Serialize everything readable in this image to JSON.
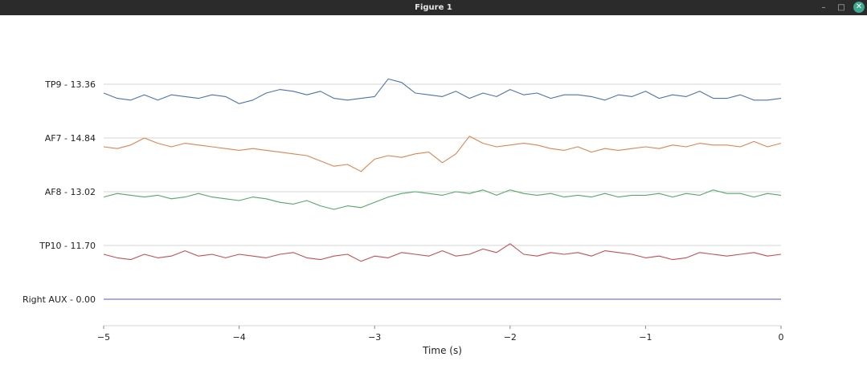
{
  "window": {
    "title": "Figure 1",
    "minimize_glyph": "–",
    "maximize_glyph": "□",
    "close_glyph": "✕",
    "close_color": "#3fa88f"
  },
  "chart_data": {
    "type": "line",
    "title": "",
    "xlabel": "Time (s)",
    "ylabel": "",
    "xlim": [
      -5,
      0
    ],
    "xticks": [
      -5,
      -4,
      -3,
      -2,
      -1,
      0
    ],
    "xtick_labels": [
      "−5",
      "−4",
      "−3",
      "−2",
      "−1",
      "0"
    ],
    "grid": "horizontal at each channel baseline",
    "channels": [
      "TP9 - 13.36",
      "AF7 - 14.84",
      "AF8 - 13.02",
      "TP10 - 11.70",
      "Right AUX - 0.00"
    ],
    "series": [
      {
        "name": "TP9 - 13.36",
        "color": "#4c72b0",
        "x": [
          -5.0,
          -4.9,
          -4.8,
          -4.7,
          -4.6,
          -4.5,
          -4.4,
          -4.3,
          -4.2,
          -4.1,
          -4.0,
          -3.9,
          -3.8,
          -3.7,
          -3.6,
          -3.5,
          -3.4,
          -3.3,
          -3.2,
          -3.1,
          -3.0,
          -2.9,
          -2.8,
          -2.7,
          -2.6,
          -2.5,
          -2.4,
          -2.3,
          -2.2,
          -2.1,
          -2.0,
          -1.9,
          -1.8,
          -1.7,
          -1.6,
          -1.5,
          -1.4,
          -1.3,
          -1.2,
          -1.1,
          -1.0,
          -0.9,
          -0.8,
          -0.7,
          -0.6,
          -0.5,
          -0.4,
          -0.3,
          -0.2,
          -0.1,
          0.0
        ],
        "y": [
          -0.5,
          -0.8,
          -0.9,
          -0.6,
          -0.9,
          -0.6,
          -0.7,
          -0.8,
          -0.6,
          -0.7,
          -1.1,
          -0.9,
          -0.5,
          -0.3,
          -0.4,
          -0.6,
          -0.4,
          -0.8,
          -0.9,
          -0.8,
          -0.7,
          0.3,
          0.1,
          -0.5,
          -0.6,
          -0.7,
          -0.4,
          -0.8,
          -0.5,
          -0.7,
          -0.3,
          -0.6,
          -0.5,
          -0.8,
          -0.6,
          -0.6,
          -0.7,
          -0.9,
          -0.6,
          -0.7,
          -0.4,
          -0.8,
          -0.6,
          -0.7,
          -0.4,
          -0.8,
          -0.8,
          -0.6,
          -0.9,
          -0.9,
          -0.8
        ]
      },
      {
        "name": "AF7 - 14.84",
        "color": "#dd8452",
        "x": [
          -5.0,
          -4.9,
          -4.8,
          -4.7,
          -4.6,
          -4.5,
          -4.4,
          -4.3,
          -4.2,
          -4.1,
          -4.0,
          -3.9,
          -3.8,
          -3.7,
          -3.6,
          -3.5,
          -3.4,
          -3.3,
          -3.2,
          -3.1,
          -3.0,
          -2.9,
          -2.8,
          -2.7,
          -2.6,
          -2.5,
          -2.4,
          -2.3,
          -2.2,
          -2.1,
          -2.0,
          -1.9,
          -1.8,
          -1.7,
          -1.6,
          -1.5,
          -1.4,
          -1.3,
          -1.2,
          -1.1,
          -1.0,
          -0.9,
          -0.8,
          -0.7,
          -0.6,
          -0.5,
          -0.4,
          -0.3,
          -0.2,
          -0.1,
          0.0
        ],
        "y": [
          -0.5,
          -0.6,
          -0.4,
          0.0,
          -0.3,
          -0.5,
          -0.3,
          -0.4,
          -0.5,
          -0.6,
          -0.7,
          -0.6,
          -0.7,
          -0.8,
          -0.9,
          -1.0,
          -1.3,
          -1.6,
          -1.5,
          -1.9,
          -1.2,
          -1.0,
          -1.1,
          -0.9,
          -0.8,
          -1.4,
          -0.9,
          0.1,
          -0.3,
          -0.5,
          -0.4,
          -0.3,
          -0.4,
          -0.6,
          -0.7,
          -0.5,
          -0.8,
          -0.6,
          -0.7,
          -0.6,
          -0.5,
          -0.6,
          -0.4,
          -0.5,
          -0.3,
          -0.4,
          -0.4,
          -0.5,
          -0.2,
          -0.5,
          -0.3
        ]
      },
      {
        "name": "AF8 - 13.02",
        "color": "#55a868",
        "x": [
          -5.0,
          -4.9,
          -4.8,
          -4.7,
          -4.6,
          -4.5,
          -4.4,
          -4.3,
          -4.2,
          -4.1,
          -4.0,
          -3.9,
          -3.8,
          -3.7,
          -3.6,
          -3.5,
          -3.4,
          -3.3,
          -3.2,
          -3.1,
          -3.0,
          -2.9,
          -2.8,
          -2.7,
          -2.6,
          -2.5,
          -2.4,
          -2.3,
          -2.2,
          -2.1,
          -2.0,
          -1.9,
          -1.8,
          -1.7,
          -1.6,
          -1.5,
          -1.4,
          -1.3,
          -1.2,
          -1.1,
          -1.0,
          -0.9,
          -0.8,
          -0.7,
          -0.6,
          -0.5,
          -0.4,
          -0.3,
          -0.2,
          -0.1,
          0.0
        ],
        "y": [
          -0.3,
          -0.1,
          -0.2,
          -0.3,
          -0.2,
          -0.4,
          -0.3,
          -0.1,
          -0.3,
          -0.4,
          -0.5,
          -0.3,
          -0.4,
          -0.6,
          -0.7,
          -0.5,
          -0.8,
          -1.0,
          -0.8,
          -0.9,
          -0.6,
          -0.3,
          -0.1,
          0.0,
          -0.1,
          -0.2,
          0.0,
          -0.1,
          0.1,
          -0.2,
          0.1,
          -0.1,
          -0.2,
          -0.1,
          -0.3,
          -0.2,
          -0.3,
          -0.1,
          -0.3,
          -0.2,
          -0.2,
          -0.1,
          -0.3,
          -0.1,
          -0.2,
          0.1,
          -0.1,
          -0.1,
          -0.3,
          -0.1,
          -0.2
        ]
      },
      {
        "name": "TP10 - 11.70",
        "color": "#c44e52",
        "x": [
          -5.0,
          -4.9,
          -4.8,
          -4.7,
          -4.6,
          -4.5,
          -4.4,
          -4.3,
          -4.2,
          -4.1,
          -4.0,
          -3.9,
          -3.8,
          -3.7,
          -3.6,
          -3.5,
          -3.4,
          -3.3,
          -3.2,
          -3.1,
          -3.0,
          -2.9,
          -2.8,
          -2.7,
          -2.6,
          -2.5,
          -2.4,
          -2.3,
          -2.2,
          -2.1,
          -2.0,
          -1.9,
          -1.8,
          -1.7,
          -1.6,
          -1.5,
          -1.4,
          -1.3,
          -1.2,
          -1.1,
          -1.0,
          -0.9,
          -0.8,
          -0.7,
          -0.6,
          -0.5,
          -0.4,
          -0.3,
          -0.2,
          -0.1,
          0.0
        ],
        "y": [
          -0.5,
          -0.7,
          -0.8,
          -0.5,
          -0.7,
          -0.6,
          -0.3,
          -0.6,
          -0.5,
          -0.7,
          -0.5,
          -0.6,
          -0.7,
          -0.5,
          -0.4,
          -0.7,
          -0.8,
          -0.6,
          -0.5,
          -0.9,
          -0.6,
          -0.7,
          -0.4,
          -0.5,
          -0.6,
          -0.3,
          -0.6,
          -0.5,
          -0.2,
          -0.4,
          0.1,
          -0.5,
          -0.6,
          -0.4,
          -0.5,
          -0.4,
          -0.6,
          -0.3,
          -0.4,
          -0.5,
          -0.7,
          -0.6,
          -0.8,
          -0.7,
          -0.4,
          -0.5,
          -0.6,
          -0.5,
          -0.4,
          -0.6,
          -0.5
        ]
      },
      {
        "name": "Right AUX - 0.00",
        "color": "#5a5ab4",
        "x": [
          -5.0,
          0.0
        ],
        "y": [
          0.0,
          0.0
        ]
      }
    ]
  }
}
